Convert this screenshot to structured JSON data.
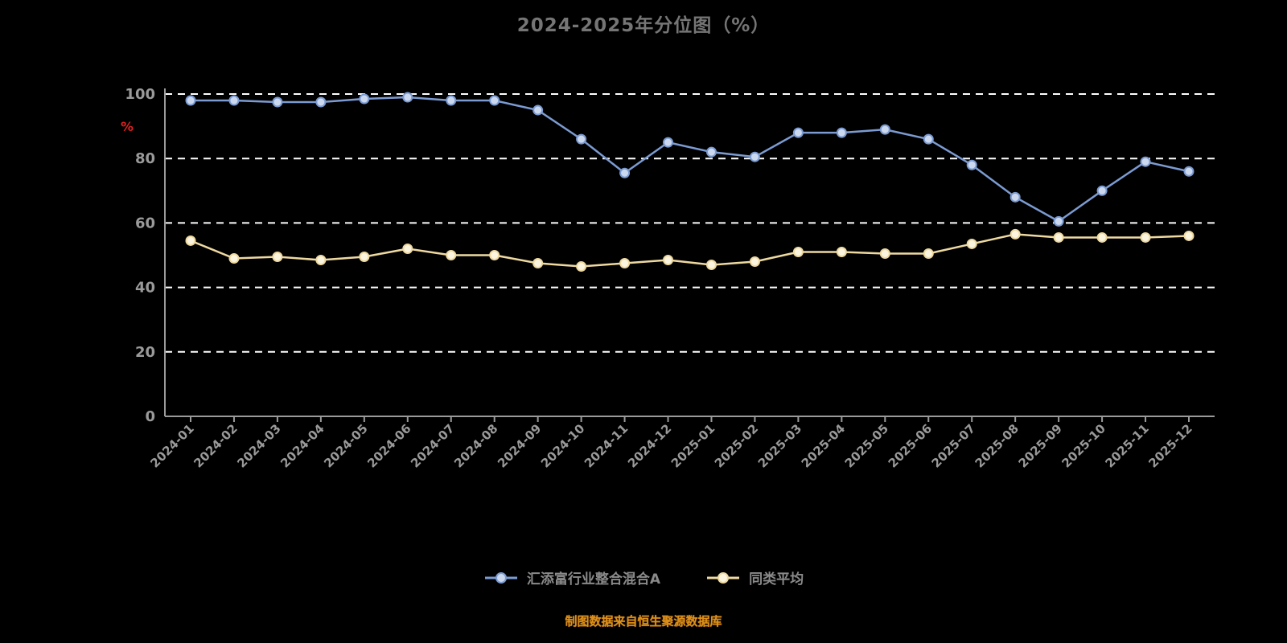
{
  "title": "2024-2025年分位图（%）",
  "footer_note": "制图数据来自恒生聚源数据库",
  "y_unit_label": "%",
  "colors": {
    "background": "#000000",
    "title_text": "#757575",
    "axis_line": "#9a9a9a",
    "grid_line": "#ffffff",
    "tick_label": "#9a9a9a",
    "unit_label_red": "#e02020",
    "series_blue": "#7b9bd2",
    "series_blue_marker_fill": "#ccd8ee",
    "series_yellow": "#eed9a0",
    "series_yellow_marker_fill": "#fbf5e0",
    "footer_orange": "#dd8f1c",
    "legend_text": "#8a8a8a"
  },
  "legend": {
    "items": [
      {
        "label": "汇添富行业整合混合A",
        "line_color": "#7b9bd2",
        "marker_fill": "#ccd8ee"
      },
      {
        "label": "同类平均",
        "line_color": "#eed9a0",
        "marker_fill": "#fbf5e0"
      }
    ]
  },
  "chart_data": {
    "type": "line",
    "title": "2024-2025年分位图（%）",
    "xlabel": "",
    "ylabel": "%",
    "ylim": [
      0,
      100
    ],
    "yticks": [
      0,
      20,
      40,
      60,
      80,
      100
    ],
    "grid": true,
    "legend_position": "bottom",
    "categories": [
      "2024-01",
      "2024-02",
      "2024-03",
      "2024-04",
      "2024-05",
      "2024-06",
      "2024-07",
      "2024-08",
      "2024-09",
      "2024-10",
      "2024-11",
      "2024-12",
      "2025-01",
      "2025-02",
      "2025-03",
      "2025-04",
      "2025-05",
      "2025-06",
      "2025-07",
      "2025-08",
      "2025-09",
      "2025-10",
      "2025-11",
      "2025-12"
    ],
    "series": [
      {
        "name": "汇添富行业整合混合A",
        "color": "#7b9bd2",
        "marker_fill": "#ccd8ee",
        "values": [
          98,
          98,
          97.5,
          97.5,
          98.5,
          99,
          98,
          98,
          95,
          86,
          75.5,
          85,
          82,
          80.5,
          88,
          88,
          89,
          86,
          78,
          68,
          60.5,
          70,
          79,
          76
        ]
      },
      {
        "name": "同类平均",
        "color": "#eed9a0",
        "marker_fill": "#fbf5e0",
        "values": [
          54.5,
          49,
          49.5,
          48.5,
          49.5,
          52,
          50,
          50,
          47.5,
          46.5,
          47.5,
          48.5,
          47,
          48,
          51,
          51,
          50.5,
          50.5,
          53.5,
          56.5,
          55.5,
          55.5,
          55.5,
          56
        ]
      }
    ]
  }
}
